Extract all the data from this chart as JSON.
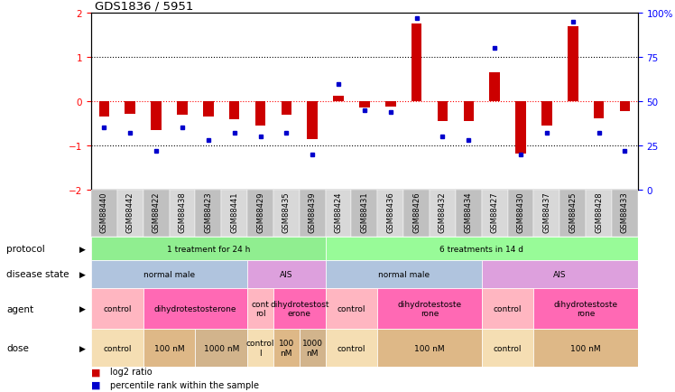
{
  "title": "GDS1836 / 5951",
  "samples": [
    "GSM88440",
    "GSM88442",
    "GSM88422",
    "GSM88438",
    "GSM88423",
    "GSM88441",
    "GSM88429",
    "GSM88435",
    "GSM88439",
    "GSM88424",
    "GSM88431",
    "GSM88436",
    "GSM88426",
    "GSM88432",
    "GSM88434",
    "GSM88427",
    "GSM88430",
    "GSM88437",
    "GSM88425",
    "GSM88428",
    "GSM88433"
  ],
  "log2_ratio": [
    -0.35,
    -0.28,
    -0.65,
    -0.3,
    -0.35,
    -0.4,
    -0.55,
    -0.3,
    -0.85,
    0.12,
    -0.15,
    -0.12,
    1.75,
    -0.45,
    -0.45,
    0.65,
    -1.18,
    -0.55,
    1.7,
    -0.38,
    -0.22
  ],
  "percentile": [
    35,
    32,
    22,
    35,
    28,
    32,
    30,
    32,
    20,
    60,
    45,
    44,
    97,
    30,
    28,
    80,
    20,
    32,
    95,
    32,
    22
  ],
  "protocol_spans": [
    {
      "label": "1 treatment for 24 h",
      "start": 0,
      "end": 9,
      "color": "#90EE90"
    },
    {
      "label": "6 treatments in 14 d",
      "start": 9,
      "end": 21,
      "color": "#98FB98"
    }
  ],
  "disease_state_spans": [
    {
      "label": "normal male",
      "start": 0,
      "end": 6,
      "color": "#B0C4DE"
    },
    {
      "label": "AIS",
      "start": 6,
      "end": 9,
      "color": "#DDA0DD"
    },
    {
      "label": "normal male",
      "start": 9,
      "end": 15,
      "color": "#B0C4DE"
    },
    {
      "label": "AIS",
      "start": 15,
      "end": 21,
      "color": "#DDA0DD"
    }
  ],
  "agent_spans": [
    {
      "label": "control",
      "start": 0,
      "end": 2,
      "color": "#FFB6C1"
    },
    {
      "label": "dihydrotestosterone",
      "start": 2,
      "end": 6,
      "color": "#FF69B4"
    },
    {
      "label": "cont\nrol",
      "start": 6,
      "end": 7,
      "color": "#FFB6C1"
    },
    {
      "label": "dihydrotestost\nerone",
      "start": 7,
      "end": 9,
      "color": "#FF69B4"
    },
    {
      "label": "control",
      "start": 9,
      "end": 11,
      "color": "#FFB6C1"
    },
    {
      "label": "dihydrotestoste\nrone",
      "start": 11,
      "end": 15,
      "color": "#FF69B4"
    },
    {
      "label": "control",
      "start": 15,
      "end": 17,
      "color": "#FFB6C1"
    },
    {
      "label": "dihydrotestoste\nrone",
      "start": 17,
      "end": 21,
      "color": "#FF69B4"
    }
  ],
  "dose_spans": [
    {
      "label": "control",
      "start": 0,
      "end": 2,
      "color": "#F5DEB3"
    },
    {
      "label": "100 nM",
      "start": 2,
      "end": 4,
      "color": "#DEB887"
    },
    {
      "label": "1000 nM",
      "start": 4,
      "end": 6,
      "color": "#D2B48C"
    },
    {
      "label": "control\nl",
      "start": 6,
      "end": 7,
      "color": "#F5DEB3"
    },
    {
      "label": "100\nnM",
      "start": 7,
      "end": 8,
      "color": "#DEB887"
    },
    {
      "label": "1000\nnM",
      "start": 8,
      "end": 9,
      "color": "#D2B48C"
    },
    {
      "label": "control",
      "start": 9,
      "end": 11,
      "color": "#F5DEB3"
    },
    {
      "label": "100 nM",
      "start": 11,
      "end": 15,
      "color": "#DEB887"
    },
    {
      "label": "control",
      "start": 15,
      "end": 17,
      "color": "#F5DEB3"
    },
    {
      "label": "100 nM",
      "start": 17,
      "end": 21,
      "color": "#DEB887"
    }
  ],
  "ylim_left": [
    -2,
    2
  ],
  "ylim_right": [
    0,
    100
  ],
  "yticks_left": [
    -2,
    -1,
    0,
    1,
    2
  ],
  "yticks_right": [
    0,
    25,
    50,
    75,
    100
  ],
  "ytick_labels_right": [
    "0",
    "25",
    "50",
    "75",
    "100%"
  ],
  "bar_color": "#CC0000",
  "dot_color": "#0000CC",
  "bar_width": 0.4,
  "legend_items": [
    "log2 ratio",
    "percentile rank within the sample"
  ]
}
